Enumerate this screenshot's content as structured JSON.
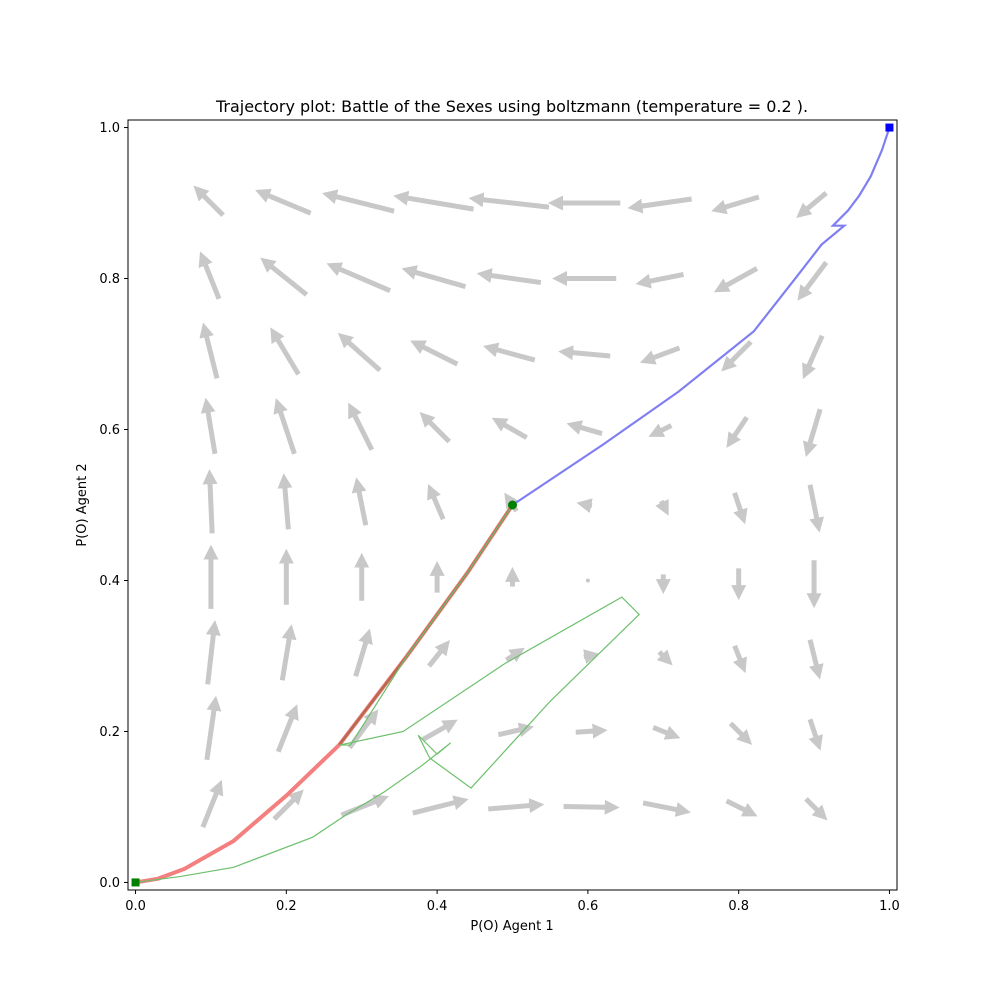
{
  "chart_data": {
    "type": "line",
    "title": "Trajectory plot: Battle of the Sexes using boltzmann (temperature = 0.2 ).",
    "xlabel": "P(O) Agent 1",
    "ylabel": "P(O) Agent 2",
    "xlim": [
      -0.01,
      1.01
    ],
    "ylim": [
      -0.01,
      1.01
    ],
    "xticks": [
      "0.0",
      "0.2",
      "0.4",
      "0.6",
      "0.8",
      "1.0"
    ],
    "yticks": [
      "0.0",
      "0.2",
      "0.4",
      "0.6",
      "0.8",
      "1.0"
    ],
    "grid": false,
    "legend": "none",
    "colors": {
      "vector_field": "#c8c8c8",
      "blue_series": "#7f7ff2",
      "red_series": "#f47f7f",
      "green_series": "#6cbf6c",
      "brown_series": "#b86a50",
      "blue_marker": "#0000ff",
      "green_marker": "#008000"
    },
    "vector_field": {
      "grid": [
        0.1,
        0.2,
        0.3,
        0.4,
        0.5,
        0.6,
        0.7,
        0.8,
        0.9
      ],
      "vectors": [
        {
          "y": 0.1,
          "u": [
            0.02,
            0.03,
            0.05,
            0.06,
            0.06,
            0.06,
            0.05,
            0.03,
            0.02
          ],
          "v": [
            0.05,
            0.03,
            0.02,
            0.015,
            0.005,
            -0.001,
            -0.01,
            -0.015,
            -0.02
          ]
        },
        {
          "y": 0.2,
          "u": [
            0.01,
            0.02,
            0.03,
            0.035,
            0.035,
            0.03,
            0.025,
            0.02,
            0.01
          ],
          "v": [
            0.07,
            0.05,
            0.04,
            0.02,
            0.008,
            0.002,
            -0.01,
            -0.02,
            -0.03
          ]
        },
        {
          "y": 0.3,
          "u": [
            0.008,
            0.01,
            0.015,
            0.02,
            0.015,
            0.01,
            0.01,
            0.01,
            0.01
          ],
          "v": [
            0.07,
            0.06,
            0.05,
            0.025,
            0.01,
            0.002,
            -0.01,
            -0.025,
            -0.04
          ]
        },
        {
          "y": 0.4,
          "u": [
            0,
            0,
            0,
            0,
            0,
            0,
            0,
            0,
            0
          ],
          "v": [
            0.07,
            0.06,
            0.05,
            0.03,
            0.015,
            0.001,
            -0.015,
            -0.03,
            -0.05
          ]
        },
        {
          "y": 0.5,
          "u": [
            -0.003,
            -0.005,
            -0.01,
            -0.015,
            -0.01,
            -0.01,
            0.005,
            0.01,
            0.01
          ],
          "v": [
            0.07,
            0.06,
            0.05,
            0.035,
            0.015,
            0.002,
            -0.01,
            -0.03,
            -0.05
          ]
        },
        {
          "y": 0.6,
          "u": [
            -0.01,
            -0.02,
            -0.025,
            -0.03,
            -0.035,
            -0.035,
            -0.02,
            -0.02,
            -0.015
          ],
          "v": [
            0.06,
            0.06,
            0.05,
            0.03,
            0.02,
            0.01,
            -0.01,
            -0.03,
            -0.05
          ]
        },
        {
          "y": 0.7,
          "u": [
            -0.015,
            -0.03,
            -0.045,
            -0.05,
            -0.055,
            -0.055,
            -0.04,
            -0.03,
            -0.02
          ],
          "v": [
            0.06,
            0.05,
            0.04,
            0.025,
            0.015,
            0.005,
            -0.015,
            -0.03,
            -0.045
          ]
        },
        {
          "y": 0.8,
          "u": [
            -0.02,
            -0.05,
            -0.07,
            -0.07,
            -0.07,
            -0.07,
            -0.05,
            -0.045,
            -0.03
          ],
          "v": [
            0.05,
            0.04,
            0.03,
            0.02,
            0.01,
            0,
            -0.01,
            -0.025,
            -0.04
          ]
        },
        {
          "y": 0.9,
          "u": [
            -0.03,
            -0.06,
            -0.08,
            -0.09,
            -0.09,
            -0.08,
            -0.07,
            -0.05,
            -0.03
          ],
          "v": [
            0.03,
            0.025,
            0.02,
            0.015,
            0.01,
            0,
            -0.01,
            -0.015,
            -0.025
          ]
        }
      ]
    },
    "series": [
      {
        "color": "blue_series",
        "width": 2.2,
        "x": [
          0.5,
          0.62,
          0.72,
          0.82,
          0.875,
          0.91,
          0.94,
          0.925,
          0.945,
          0.96,
          0.975,
          0.99,
          1.0
        ],
        "y": [
          0.5,
          0.58,
          0.65,
          0.73,
          0.8,
          0.845,
          0.87,
          0.87,
          0.89,
          0.91,
          0.935,
          0.97,
          1.0
        ]
      },
      {
        "color": "red_series",
        "width": 4,
        "x": [
          0.0,
          0.03,
          0.065,
          0.13,
          0.2,
          0.27,
          0.36,
          0.44,
          0.5
        ],
        "y": [
          0.0,
          0.005,
          0.018,
          0.055,
          0.115,
          0.182,
          0.3,
          0.41,
          0.5
        ]
      },
      {
        "color": "brown_series",
        "width": 2.5,
        "x": [
          0.27,
          0.36,
          0.44,
          0.5
        ],
        "y": [
          0.182,
          0.3,
          0.41,
          0.5
        ]
      },
      {
        "color": "green_series",
        "width": 1.2,
        "x": [
          0.0,
          0.06,
          0.13,
          0.235,
          0.28,
          0.33,
          0.38,
          0.418,
          0.4,
          0.375,
          0.39,
          0.445,
          0.55,
          0.668,
          0.645,
          0.49,
          0.355,
          0.285,
          0.27,
          0.285,
          0.36,
          0.44,
          0.5
        ],
        "y": [
          0.0,
          0.008,
          0.02,
          0.06,
          0.09,
          0.12,
          0.155,
          0.185,
          0.17,
          0.195,
          0.165,
          0.125,
          0.24,
          0.355,
          0.378,
          0.29,
          0.2,
          0.185,
          0.182,
          0.182,
          0.3,
          0.41,
          0.5
        ]
      }
    ],
    "markers": [
      {
        "x": 1.0,
        "y": 1.0,
        "shape": "square",
        "color": "blue_marker"
      },
      {
        "x": 0.0,
        "y": 0.0,
        "shape": "square",
        "color": "green_marker"
      },
      {
        "x": 0.5,
        "y": 0.5,
        "shape": "circle",
        "color": "green_marker"
      }
    ]
  }
}
